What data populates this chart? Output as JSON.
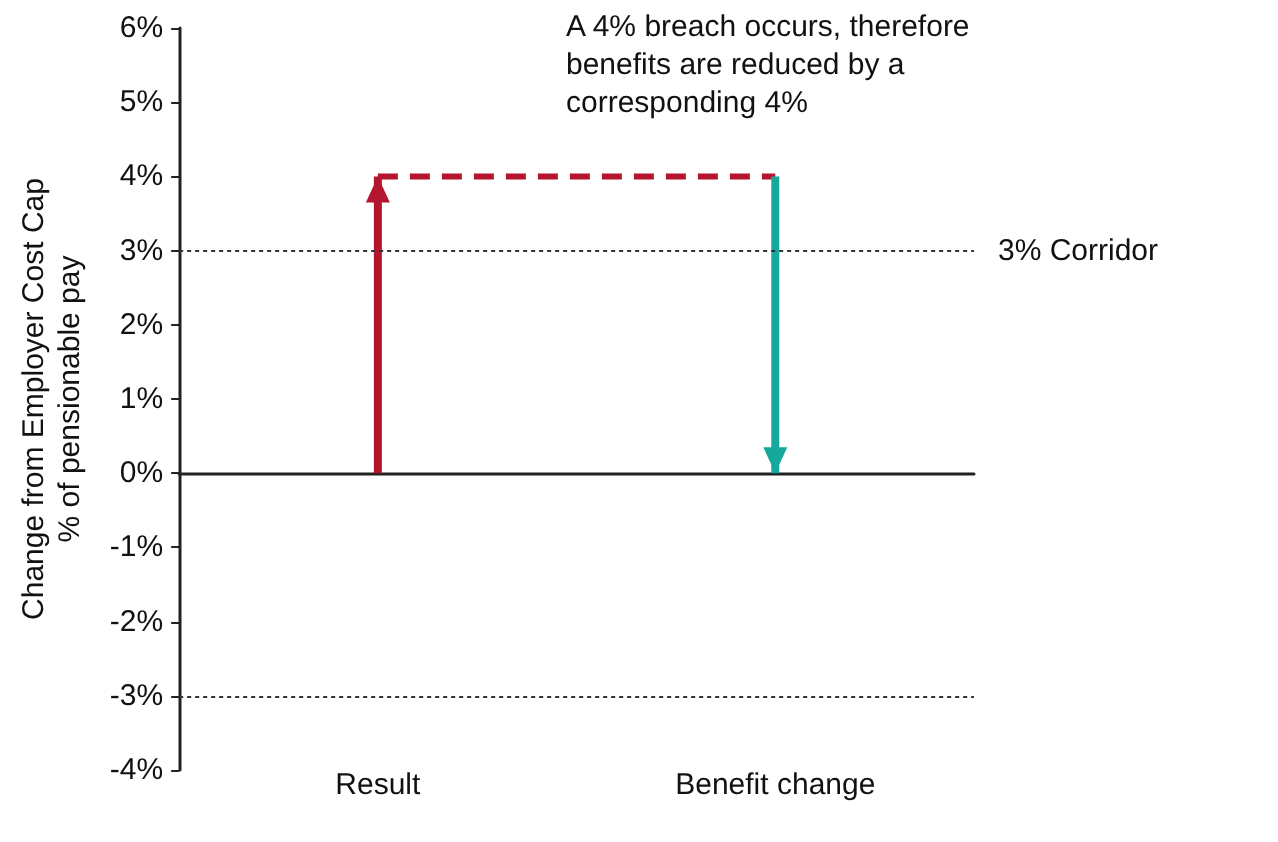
{
  "chart_data": {
    "type": "bar",
    "ylabel": "Change from Employer Cost Cap\n% of pensionable pay",
    "categories": [
      "Result",
      "Benefit change"
    ],
    "series": [
      {
        "values": [
          4,
          -4
        ],
        "base": [
          0,
          4
        ],
        "colors": [
          "#b3152f",
          "#17a89c"
        ]
      },
      {
        "type": "line",
        "values": [
          4,
          4
        ],
        "color": "#b3152f",
        "line_style": "dashed",
        "marker": "none"
      }
    ],
    "ylim": [
      -4,
      6
    ],
    "yticks": [
      {
        "value": -4,
        "label": "-4%"
      },
      {
        "value": -3,
        "label": "-3%"
      },
      {
        "value": -2,
        "label": "-2%"
      },
      {
        "value": -1,
        "label": "-1%"
      },
      {
        "value": 0,
        "label": "0%"
      },
      {
        "value": 1,
        "label": "1%"
      },
      {
        "value": 2,
        "label": "2%"
      },
      {
        "value": 3,
        "label": "3%"
      },
      {
        "value": 4,
        "label": "4%"
      },
      {
        "value": 5,
        "label": "5%"
      },
      {
        "value": 6,
        "label": "6%"
      }
    ],
    "ref_lines": [
      {
        "axis": "y",
        "value": 3,
        "label": "3% Corridor",
        "color": "#333333",
        "line_style": "dotted"
      },
      {
        "axis": "y",
        "value": -3,
        "label": null,
        "color": "#333333",
        "line_style": "dotted"
      }
    ],
    "annotations": [
      "A 4% breach occurs, therefore benefits are reduced by a corresponding 4%"
    ],
    "grid": false
  }
}
